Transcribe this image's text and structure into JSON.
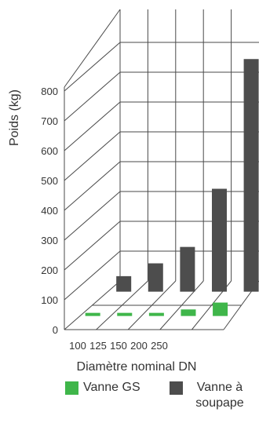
{
  "chart_data": {
    "type": "bar",
    "style": "3d",
    "categories": [
      "100",
      "125",
      "150",
      "200",
      "250"
    ],
    "series": [
      {
        "name": "Vanne GS",
        "color": "#3fb64a",
        "values": [
          8,
          9,
          10,
          22,
          45
        ]
      },
      {
        "name": "Vanne à soupape",
        "color": "#4d4d4d",
        "values": [
          52,
          95,
          150,
          345,
          780
        ]
      }
    ],
    "xlabel": "Diamètre nominal DN",
    "ylabel": "Poids (kg)",
    "y_ticks": [
      "0",
      "100",
      "200",
      "300",
      "400",
      "500",
      "600",
      "700",
      "800"
    ],
    "ylim": [
      0,
      800
    ],
    "grid": true,
    "legend_position": "bottom"
  }
}
